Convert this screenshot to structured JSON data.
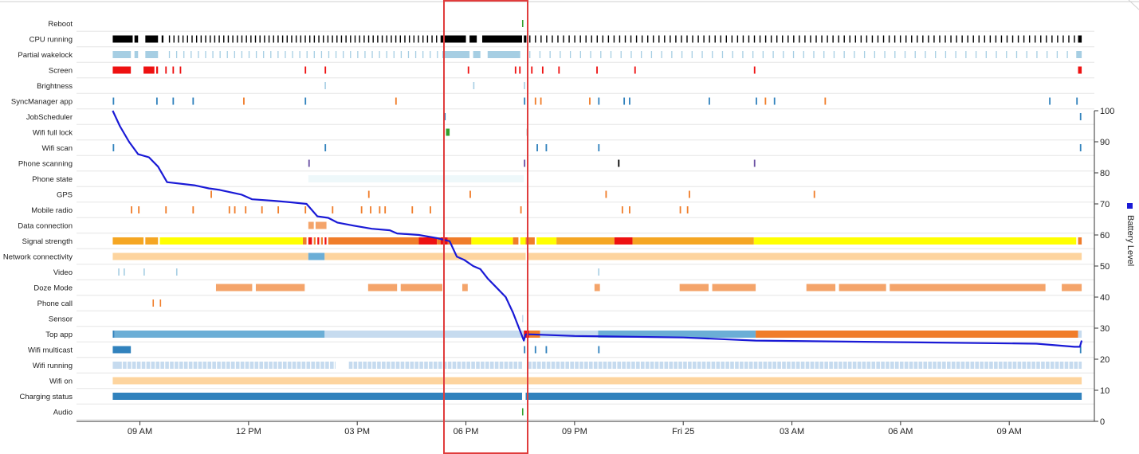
{
  "chart_data": {
    "type": "timeline",
    "row_labels": [
      "Reboot",
      "CPU running",
      "Partial wakelock",
      "Screen",
      "Brightness",
      "SyncManager app",
      "JobScheduler",
      "Wifi full lock",
      "Wifi scan",
      "Phone scanning",
      "Phone state",
      "GPS",
      "Mobile radio",
      "Data connection",
      "Signal strength",
      "Network connectivity",
      "Video",
      "Doze Mode",
      "Phone call",
      "Sensor",
      "Top app",
      "Wifi multicast",
      "Wifi running",
      "Wifi on",
      "Charging status",
      "Audio"
    ],
    "x_ticks": [
      {
        "label": "09 AM",
        "t": 9
      },
      {
        "label": "12 PM",
        "t": 12
      },
      {
        "label": "03 PM",
        "t": 15
      },
      {
        "label": "06 PM",
        "t": 18
      },
      {
        "label": "09 PM",
        "t": 21
      },
      {
        "label": "Fri 25",
        "t": 24
      },
      {
        "label": "03 AM",
        "t": 27
      },
      {
        "label": "06 AM",
        "t": 30
      },
      {
        "label": "09 AM",
        "t": 33
      }
    ],
    "xlim": [
      7.25,
      35.35
    ],
    "y_right": {
      "label": "Battery Level",
      "ylim": [
        0,
        100
      ],
      "ticks": [
        0,
        10,
        20,
        30,
        40,
        50,
        60,
        70,
        80,
        90,
        100
      ]
    },
    "legend": {
      "label": "Battery Level",
      "color": "#0000ff",
      "placement": "right"
    },
    "highlight_range": [
      17.3,
      19.65
    ],
    "colors": {
      "battery": "#1a1ad6",
      "highlight": "#e03c3c",
      "black": "#000000",
      "lightblue": "#a6cee3",
      "red": "#ee1111",
      "orange": "#f07d2a",
      "yellow": "#ffff00",
      "amber": "#f5a623",
      "peach": "#fdd49e",
      "salmon": "#f4a46a",
      "blue": "#3182bd",
      "midblue": "#6baed6",
      "paleblue": "#c6dbef",
      "green": "#33a02c",
      "purple": "#6a51a3",
      "ice": "#eef8fa"
    },
    "battery_series": [
      {
        "t": 8.25,
        "v": 100
      },
      {
        "t": 8.45,
        "v": 95
      },
      {
        "t": 8.7,
        "v": 90
      },
      {
        "t": 8.95,
        "v": 86
      },
      {
        "t": 9.25,
        "v": 85
      },
      {
        "t": 9.5,
        "v": 82
      },
      {
        "t": 9.75,
        "v": 77
      },
      {
        "t": 10.5,
        "v": 76
      },
      {
        "t": 10.9,
        "v": 75
      },
      {
        "t": 11.2,
        "v": 74.5
      },
      {
        "t": 11.8,
        "v": 73
      },
      {
        "t": 12.1,
        "v": 71.5
      },
      {
        "t": 12.7,
        "v": 71
      },
      {
        "t": 13.2,
        "v": 70.5
      },
      {
        "t": 13.6,
        "v": 70
      },
      {
        "t": 13.9,
        "v": 66
      },
      {
        "t": 14.2,
        "v": 65.5
      },
      {
        "t": 14.45,
        "v": 64
      },
      {
        "t": 14.9,
        "v": 63
      },
      {
        "t": 15.4,
        "v": 62
      },
      {
        "t": 15.9,
        "v": 61.5
      },
      {
        "t": 16.1,
        "v": 60.5
      },
      {
        "t": 16.7,
        "v": 60
      },
      {
        "t": 17.2,
        "v": 59
      },
      {
        "t": 17.55,
        "v": 58
      },
      {
        "t": 17.75,
        "v": 53
      },
      {
        "t": 17.95,
        "v": 52
      },
      {
        "t": 18.2,
        "v": 50
      },
      {
        "t": 18.4,
        "v": 49
      },
      {
        "t": 18.6,
        "v": 46
      },
      {
        "t": 18.85,
        "v": 43
      },
      {
        "t": 19.1,
        "v": 40
      },
      {
        "t": 19.3,
        "v": 35
      },
      {
        "t": 19.5,
        "v": 29
      },
      {
        "t": 19.6,
        "v": 26
      },
      {
        "t": 19.65,
        "v": 28
      },
      {
        "t": 19.8,
        "v": 28
      },
      {
        "t": 21.0,
        "v": 27.5
      },
      {
        "t": 24.0,
        "v": 27
      },
      {
        "t": 26.0,
        "v": 26
      },
      {
        "t": 30.0,
        "v": 25.5
      },
      {
        "t": 33.75,
        "v": 25
      },
      {
        "t": 34.8,
        "v": 24
      },
      {
        "t": 34.95,
        "v": 24
      },
      {
        "t": 35.0,
        "v": 26
      }
    ],
    "rows": {
      "Reboot": [
        [
          19.55,
          19.58,
          "green"
        ]
      ],
      "CPU running": [
        [
          8.25,
          8.8,
          "black"
        ],
        [
          8.85,
          8.95,
          "black"
        ],
        [
          9.15,
          9.5,
          "black"
        ],
        [
          9.6,
          9.65,
          "black"
        ],
        [
          17.3,
          18.0,
          "black"
        ],
        [
          18.1,
          18.3,
          "black"
        ],
        [
          18.45,
          19.55,
          "black"
        ],
        [
          19.6,
          19.67,
          "black"
        ],
        [
          34.9,
          35.0,
          "black"
        ]
      ],
      "Partial wakelock": [
        [
          8.25,
          8.75,
          "lightblue"
        ],
        [
          8.85,
          8.95,
          "lightblue"
        ],
        [
          9.15,
          9.5,
          "lightblue"
        ],
        [
          17.35,
          18.1,
          "lightblue"
        ],
        [
          18.2,
          18.4,
          "lightblue"
        ],
        [
          18.6,
          19.5,
          "lightblue"
        ],
        [
          34.85,
          35.0,
          "lightblue"
        ]
      ],
      "Screen": [
        [
          8.25,
          8.75,
          "red"
        ],
        [
          9.1,
          9.4,
          "red"
        ],
        [
          9.45,
          9.5,
          "red"
        ],
        [
          9.7,
          9.74,
          "red"
        ],
        [
          9.9,
          9.94,
          "red"
        ],
        [
          10.1,
          10.14,
          "red"
        ],
        [
          13.55,
          13.59,
          "red"
        ],
        [
          14.1,
          14.14,
          "red"
        ],
        [
          18.05,
          18.09,
          "red"
        ],
        [
          19.35,
          19.39,
          "red"
        ],
        [
          19.47,
          19.51,
          "red"
        ],
        [
          19.8,
          19.84,
          "red"
        ],
        [
          20.1,
          20.14,
          "red"
        ],
        [
          20.55,
          20.59,
          "red"
        ],
        [
          21.6,
          21.64,
          "red"
        ],
        [
          22.65,
          22.69,
          "red"
        ],
        [
          25.95,
          25.99,
          "red"
        ],
        [
          34.9,
          35.0,
          "red"
        ]
      ],
      "Brightness": [
        [
          14.1,
          14.13,
          "lightblue"
        ],
        [
          18.2,
          18.23,
          "lightblue"
        ],
        [
          19.6,
          19.63,
          "lightblue"
        ]
      ],
      "SyncManager app": [
        [
          8.25,
          8.29,
          "blue"
        ],
        [
          9.45,
          9.49,
          "blue"
        ],
        [
          9.9,
          9.94,
          "blue"
        ],
        [
          10.45,
          10.49,
          "blue"
        ],
        [
          11.85,
          11.89,
          "orange"
        ],
        [
          13.55,
          13.59,
          "blue"
        ],
        [
          16.05,
          16.09,
          "orange"
        ],
        [
          19.6,
          19.64,
          "blue"
        ],
        [
          19.9,
          19.94,
          "orange"
        ],
        [
          20.05,
          20.09,
          "orange"
        ],
        [
          21.4,
          21.44,
          "orange"
        ],
        [
          21.65,
          21.69,
          "blue"
        ],
        [
          22.35,
          22.39,
          "blue"
        ],
        [
          22.5,
          22.54,
          "blue"
        ],
        [
          24.7,
          24.74,
          "blue"
        ],
        [
          26.0,
          26.04,
          "blue"
        ],
        [
          26.25,
          26.29,
          "orange"
        ],
        [
          26.5,
          26.54,
          "blue"
        ],
        [
          27.9,
          27.94,
          "orange"
        ],
        [
          34.1,
          34.14,
          "blue"
        ],
        [
          34.85,
          34.89,
          "blue"
        ]
      ],
      "JobScheduler": [
        [
          17.4,
          17.44,
          "blue"
        ],
        [
          34.95,
          34.99,
          "blue"
        ]
      ],
      "Wifi full lock": [
        [
          17.45,
          17.55,
          "green"
        ],
        [
          19.68,
          19.71,
          "black"
        ]
      ],
      "Wifi scan": [
        [
          8.25,
          8.29,
          "blue"
        ],
        [
          14.1,
          14.14,
          "blue"
        ],
        [
          19.95,
          19.99,
          "blue"
        ],
        [
          20.2,
          20.24,
          "blue"
        ],
        [
          21.65,
          21.69,
          "blue"
        ],
        [
          34.95,
          34.99,
          "blue"
        ]
      ],
      "Phone scanning": [
        [
          13.65,
          13.69,
          "purple"
        ],
        [
          19.6,
          19.64,
          "purple"
        ],
        [
          22.2,
          22.24,
          "black"
        ],
        [
          25.95,
          25.99,
          "purple"
        ]
      ],
      "Phone state": [
        [
          13.65,
          19.6,
          "ice"
        ]
      ],
      "GPS": [
        [
          10.95,
          10.99,
          "orange"
        ],
        [
          15.3,
          15.34,
          "orange"
        ],
        [
          18.1,
          18.14,
          "orange"
        ],
        [
          21.85,
          21.89,
          "orange"
        ],
        [
          24.15,
          24.19,
          "orange"
        ],
        [
          27.6,
          27.64,
          "orange"
        ]
      ],
      "Mobile radio": [
        [
          8.75,
          8.79,
          "orange"
        ],
        [
          8.95,
          8.99,
          "orange"
        ],
        [
          9.7,
          9.74,
          "orange"
        ],
        [
          10.45,
          10.49,
          "orange"
        ],
        [
          11.45,
          11.49,
          "orange"
        ],
        [
          11.6,
          11.64,
          "orange"
        ],
        [
          11.9,
          11.94,
          "orange"
        ],
        [
          12.35,
          12.39,
          "orange"
        ],
        [
          12.8,
          12.84,
          "orange"
        ],
        [
          13.55,
          13.59,
          "orange"
        ],
        [
          14.3,
          14.34,
          "orange"
        ],
        [
          15.1,
          15.14,
          "orange"
        ],
        [
          15.35,
          15.39,
          "orange"
        ],
        [
          15.6,
          15.64,
          "orange"
        ],
        [
          15.75,
          15.79,
          "orange"
        ],
        [
          16.5,
          16.54,
          "orange"
        ],
        [
          17.0,
          17.04,
          "orange"
        ],
        [
          19.5,
          19.54,
          "orange"
        ],
        [
          22.3,
          22.34,
          "orange"
        ],
        [
          22.5,
          22.54,
          "orange"
        ],
        [
          23.9,
          23.94,
          "orange"
        ],
        [
          24.1,
          24.14,
          "orange"
        ]
      ],
      "Data connection": [
        [
          13.65,
          13.8,
          "salmon"
        ],
        [
          13.85,
          14.15,
          "salmon"
        ]
      ],
      "Signal strength": [
        [
          8.25,
          9.1,
          "amber"
        ],
        [
          9.15,
          9.5,
          "amber"
        ],
        [
          9.55,
          13.5,
          "yellow"
        ],
        [
          13.5,
          13.6,
          "orange"
        ],
        [
          13.65,
          13.75,
          "red"
        ],
        [
          13.8,
          13.85,
          "orange"
        ],
        [
          13.9,
          13.95,
          "red"
        ],
        [
          14.0,
          14.05,
          "orange"
        ],
        [
          14.1,
          14.15,
          "red"
        ],
        [
          14.2,
          16.7,
          "orange"
        ],
        [
          16.7,
          17.2,
          "red"
        ],
        [
          17.2,
          17.3,
          "orange"
        ],
        [
          17.3,
          17.5,
          "red"
        ],
        [
          17.5,
          18.15,
          "orange"
        ],
        [
          18.15,
          19.3,
          "yellow"
        ],
        [
          19.3,
          19.45,
          "orange"
        ],
        [
          19.5,
          19.65,
          "yellow"
        ],
        [
          19.65,
          19.9,
          "orange"
        ],
        [
          19.95,
          20.5,
          "yellow"
        ],
        [
          20.5,
          22.1,
          "amber"
        ],
        [
          22.1,
          22.6,
          "red"
        ],
        [
          22.6,
          25.95,
          "amber"
        ],
        [
          25.95,
          34.85,
          "yellow"
        ],
        [
          34.9,
          35.0,
          "orange"
        ]
      ],
      "Network connectivity": [
        [
          8.25,
          13.65,
          "peach"
        ],
        [
          13.65,
          14.1,
          "midblue"
        ],
        [
          14.1,
          19.65,
          "peach"
        ],
        [
          19.7,
          35.0,
          "peach"
        ]
      ],
      "Video": [
        [
          8.4,
          8.43,
          "lightblue"
        ],
        [
          8.55,
          8.58,
          "lightblue"
        ],
        [
          9.1,
          9.13,
          "lightblue"
        ],
        [
          10.0,
          10.03,
          "lightblue"
        ],
        [
          21.65,
          21.68,
          "lightblue"
        ]
      ],
      "Doze Mode": [
        [
          11.1,
          12.1,
          "salmon"
        ],
        [
          12.2,
          13.55,
          "salmon"
        ],
        [
          15.3,
          16.1,
          "salmon"
        ],
        [
          16.2,
          17.35,
          "salmon"
        ],
        [
          17.9,
          18.05,
          "salmon"
        ],
        [
          21.55,
          21.7,
          "salmon"
        ],
        [
          23.9,
          24.7,
          "salmon"
        ],
        [
          24.8,
          26.0,
          "salmon"
        ],
        [
          27.4,
          28.2,
          "salmon"
        ],
        [
          28.3,
          29.6,
          "salmon"
        ],
        [
          29.7,
          34.0,
          "salmon"
        ],
        [
          34.45,
          35.0,
          "salmon"
        ]
      ],
      "Phone call": [
        [
          9.35,
          9.38,
          "orange"
        ],
        [
          9.55,
          9.58,
          "orange"
        ]
      ],
      "Sensor": [
        [
          19.55,
          19.58,
          "paleblue"
        ]
      ],
      "Top app": [
        [
          8.25,
          8.3,
          "blue"
        ],
        [
          8.3,
          14.1,
          "midblue"
        ],
        [
          14.1,
          19.6,
          "paleblue"
        ],
        [
          19.6,
          19.75,
          "red"
        ],
        [
          19.75,
          20.05,
          "orange"
        ],
        [
          20.05,
          21.65,
          "paleblue"
        ],
        [
          21.65,
          26.0,
          "midblue"
        ],
        [
          26.0,
          34.9,
          "orange"
        ],
        [
          34.9,
          35.0,
          "paleblue"
        ]
      ],
      "Wifi multicast": [
        [
          8.25,
          8.75,
          "blue"
        ],
        [
          19.6,
          19.64,
          "blue"
        ],
        [
          19.9,
          19.94,
          "blue"
        ],
        [
          20.2,
          20.24,
          "blue"
        ],
        [
          21.65,
          21.69,
          "blue"
        ],
        [
          34.95,
          34.99,
          "blue"
        ]
      ],
      "Wifi running": [
        [
          8.25,
          14.4,
          "paleblue"
        ],
        [
          14.75,
          19.55,
          "paleblue"
        ],
        [
          19.7,
          35.0,
          "paleblue"
        ]
      ],
      "Wifi on": [
        [
          8.25,
          35.0,
          "peach"
        ]
      ],
      "Charging status": [
        [
          8.25,
          19.55,
          "blue"
        ],
        [
          19.65,
          35.0,
          "blue"
        ]
      ],
      "Audio": [
        [
          19.55,
          19.58,
          "green"
        ]
      ]
    }
  }
}
